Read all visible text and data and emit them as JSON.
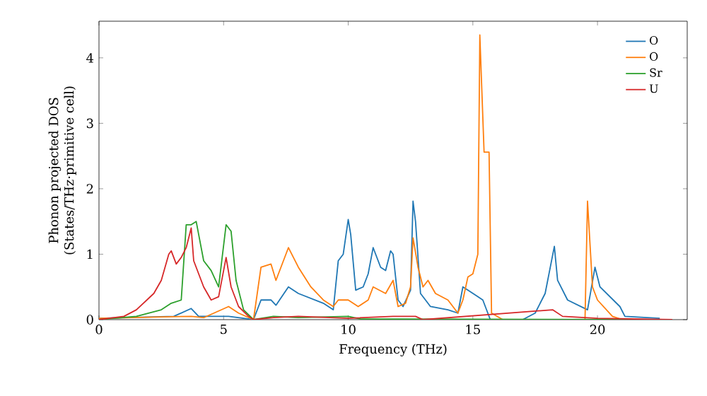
{
  "chart_data": {
    "type": "line",
    "xlabel": "Frequency (THz)",
    "ylabel": "Phonon projected DOS\n(States/THz·primitive cell)",
    "xlim": [
      0,
      23.6
    ],
    "ylim": [
      0,
      4.56
    ],
    "xticks": [
      0,
      5,
      10,
      15,
      20
    ],
    "yticks": [
      0,
      1,
      2,
      3,
      4
    ],
    "legend": "top right",
    "grid": false,
    "series": [
      {
        "name": "O",
        "color": "#1f77b4",
        "x": [
          0,
          3,
          3.7,
          4,
          5.2,
          6.2,
          6.5,
          6.9,
          7.1,
          7.6,
          8,
          9,
          9.4,
          9.6,
          9.8,
          10,
          10.1,
          10.3,
          10.6,
          10.8,
          11,
          11.3,
          11.5,
          11.7,
          11.8,
          12,
          12.2,
          12.5,
          12.6,
          12.7,
          12.9,
          13.3,
          14,
          14.4,
          14.6,
          14.8,
          15.2,
          15.4,
          15.7,
          17,
          17.5,
          17.9,
          18.27,
          18.4,
          18.8,
          19.6,
          19.9,
          20.1,
          20.5,
          20.9,
          21.1,
          22.5
        ],
        "values": [
          0.02,
          0.05,
          0.17,
          0.05,
          0.05,
          0,
          0.3,
          0.3,
          0.22,
          0.5,
          0.4,
          0.25,
          0.15,
          0.9,
          1.0,
          1.53,
          1.3,
          0.45,
          0.5,
          0.7,
          1.1,
          0.8,
          0.75,
          1.05,
          1.0,
          0.3,
          0.2,
          0.45,
          1.81,
          1.5,
          0.4,
          0.2,
          0.15,
          0.1,
          0.5,
          0.45,
          0.35,
          0.3,
          0,
          0,
          0.1,
          0.4,
          1.12,
          0.6,
          0.3,
          0.15,
          0.8,
          0.5,
          0.35,
          0.2,
          0.05,
          0.02
        ]
      },
      {
        "name": "O",
        "color": "#ff7f0e",
        "x": [
          0,
          3.7,
          4.2,
          5.2,
          5.6,
          6.2,
          6.5,
          6.9,
          7.1,
          7.6,
          8,
          8.5,
          9,
          9.4,
          9.6,
          10,
          10.4,
          10.8,
          11,
          11.5,
          11.8,
          12,
          12.3,
          12.5,
          12.6,
          12.8,
          13,
          13.2,
          13.5,
          14,
          14.4,
          14.6,
          14.8,
          15,
          15.2,
          15.28,
          15.45,
          15.65,
          15.75,
          16.2,
          19.5,
          19.6,
          19.8,
          20,
          20.6,
          21
        ],
        "values": [
          0.02,
          0.05,
          0.03,
          0.2,
          0.1,
          0,
          0.8,
          0.85,
          0.6,
          1.1,
          0.8,
          0.5,
          0.3,
          0.2,
          0.3,
          0.3,
          0.2,
          0.3,
          0.5,
          0.4,
          0.6,
          0.2,
          0.25,
          0.5,
          1.25,
          0.8,
          0.5,
          0.6,
          0.4,
          0.3,
          0.1,
          0.3,
          0.65,
          0.7,
          1.0,
          4.35,
          2.56,
          2.56,
          0.1,
          0,
          0,
          1.81,
          0.5,
          0.3,
          0.05,
          0
        ]
      },
      {
        "name": "Sr",
        "color": "#2ca02c",
        "x": [
          0,
          1.5,
          2.5,
          2.9,
          3.3,
          3.5,
          3.7,
          3.9,
          4.2,
          4.5,
          4.8,
          5.1,
          5.3,
          5.5,
          5.8,
          6.2,
          7,
          8,
          10,
          10.5,
          12,
          23
        ],
        "values": [
          0,
          0.05,
          0.15,
          0.25,
          0.3,
          1.45,
          1.45,
          1.5,
          0.9,
          0.75,
          0.5,
          1.45,
          1.35,
          0.6,
          0.15,
          0,
          0.05,
          0.03,
          0.05,
          0.01,
          0.01,
          0
        ]
      },
      {
        "name": "U",
        "color": "#d62728",
        "x": [
          0,
          1,
          1.5,
          2.2,
          2.5,
          2.8,
          2.9,
          3.1,
          3.3,
          3.5,
          3.7,
          3.8,
          4.2,
          4.5,
          4.8,
          5.1,
          5.3,
          5.6,
          6,
          6.2,
          7,
          8,
          10,
          11.8,
          12.7,
          13,
          18.2,
          18.6,
          20,
          23
        ],
        "values": [
          0,
          0.05,
          0.15,
          0.4,
          0.6,
          1.0,
          1.05,
          0.85,
          0.95,
          1.1,
          1.4,
          0.9,
          0.5,
          0.3,
          0.35,
          0.95,
          0.5,
          0.2,
          0.05,
          0,
          0.03,
          0.05,
          0.02,
          0.05,
          0.05,
          0,
          0.15,
          0.05,
          0.02,
          0
        ]
      }
    ]
  }
}
